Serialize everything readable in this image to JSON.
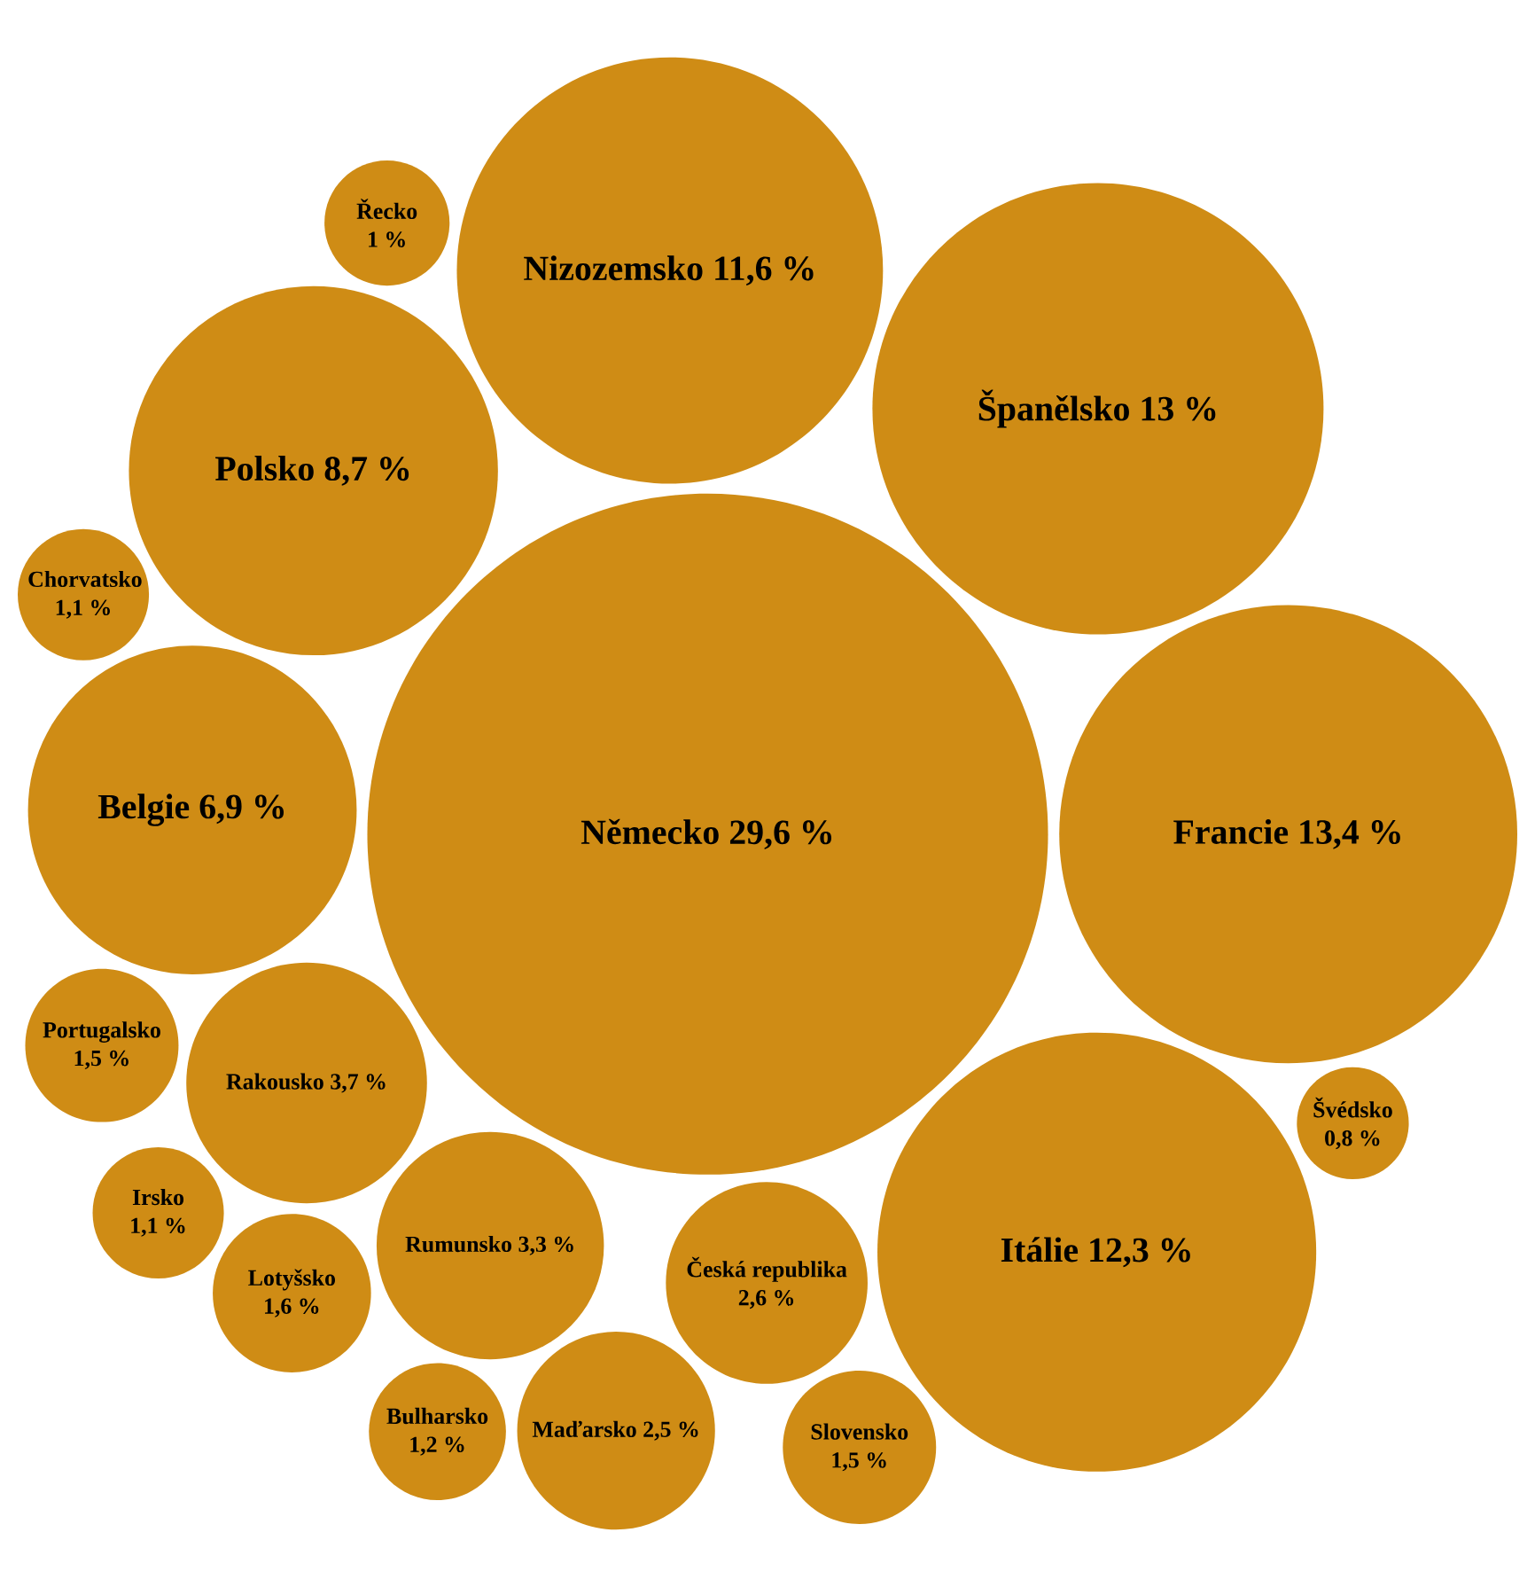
{
  "chart_data": {
    "type": "other",
    "color": "#cf8c15",
    "categories": [
      "Německo",
      "Francie",
      "Španělsko",
      "Itálie",
      "Nizozemsko",
      "Polsko",
      "Belgie",
      "Rakousko",
      "Rumunsko",
      "Česká republika",
      "Maďarsko",
      "Lotyšsko",
      "Portugalsko",
      "Slovensko",
      "Bulharsko",
      "Chorvatsko",
      "Irsko",
      "Řecko",
      "Švédsko"
    ],
    "values": [
      29.6,
      13.4,
      13,
      12.3,
      11.6,
      8.7,
      6.9,
      3.7,
      3.3,
      2.6,
      2.5,
      1.6,
      1.5,
      1.5,
      1.2,
      1.1,
      1.1,
      1,
      0.8
    ],
    "value_labels": [
      "29,6 %",
      "13,4 %",
      "13 %",
      "12,3 %",
      "11,6 %",
      "8,7 %",
      "6,9 %",
      "3,7 %",
      "3,3 %",
      "2,6 %",
      "2,5 %",
      "1,6 %",
      "1,5 %",
      "1,5 %",
      "1,2 %",
      "1,1 %",
      "1,1 %",
      "1 %",
      "0,8 %"
    ]
  }
}
